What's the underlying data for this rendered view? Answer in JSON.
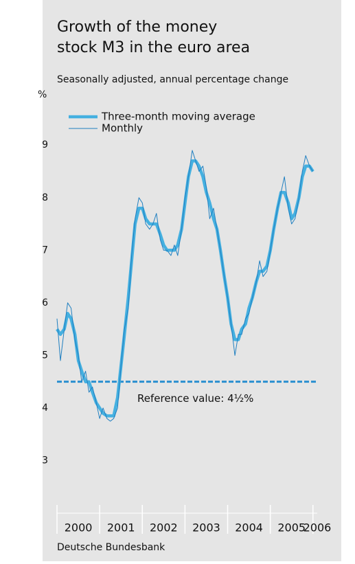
{
  "chart_data": {
    "type": "line",
    "title": [
      "Growth of the money",
      "stock M3 in the euro area"
    ],
    "subtitle": "Seasonally adjusted, annual percentage change",
    "y_label": "%",
    "source": "Deutsche Bundesbank",
    "x": [
      2000,
      2000.08,
      2000.17,
      2000.25,
      2000.33,
      2000.42,
      2000.5,
      2000.58,
      2000.67,
      2000.75,
      2000.83,
      2000.92,
      2001,
      2001.08,
      2001.17,
      2001.25,
      2001.33,
      2001.42,
      2001.5,
      2001.58,
      2001.67,
      2001.75,
      2001.83,
      2001.92,
      2002,
      2002.08,
      2002.17,
      2002.25,
      2002.33,
      2002.42,
      2002.5,
      2002.58,
      2002.67,
      2002.75,
      2002.83,
      2002.92,
      2003,
      2003.08,
      2003.17,
      2003.25,
      2003.33,
      2003.42,
      2003.5,
      2003.58,
      2003.67,
      2003.75,
      2003.83,
      2003.92,
      2004,
      2004.08,
      2004.17,
      2004.25,
      2004.33,
      2004.42,
      2004.5,
      2004.58,
      2004.67,
      2004.75,
      2004.83,
      2004.92,
      2005,
      2005.08,
      2005.17,
      2005.25,
      2005.33,
      2005.42,
      2005.5,
      2005.58,
      2005.67,
      2005.75,
      2005.83,
      2005.92,
      2006
    ],
    "series": [
      {
        "name": "Three-month moving average",
        "color": "#45b0e0",
        "width": 4.5,
        "values": [
          5.5,
          5.4,
          5.5,
          5.8,
          5.7,
          5.4,
          4.9,
          4.7,
          4.5,
          4.5,
          4.3,
          4.1,
          4.0,
          3.9,
          3.85,
          3.85,
          3.85,
          4.2,
          4.8,
          5.4,
          6.1,
          6.8,
          7.5,
          7.8,
          7.8,
          7.6,
          7.5,
          7.5,
          7.5,
          7.3,
          7.1,
          7.0,
          7.0,
          7.0,
          7.1,
          7.4,
          7.9,
          8.4,
          8.7,
          8.7,
          8.6,
          8.4,
          8.1,
          7.9,
          7.6,
          7.4,
          7.0,
          6.5,
          6.1,
          5.6,
          5.3,
          5.3,
          5.5,
          5.6,
          5.9,
          6.1,
          6.4,
          6.6,
          6.6,
          6.7,
          7.0,
          7.4,
          7.8,
          8.1,
          8.1,
          7.9,
          7.6,
          7.7,
          8.0,
          8.4,
          8.6,
          8.6,
          8.5
        ]
      },
      {
        "name": "Monthly",
        "color": "#1f7fc0",
        "width": 1,
        "values": [
          5.7,
          4.9,
          5.5,
          6.0,
          5.9,
          5.3,
          5.0,
          4.5,
          4.7,
          4.3,
          4.4,
          4.1,
          3.8,
          4.0,
          3.8,
          3.75,
          3.8,
          4.0,
          4.8,
          5.5,
          5.9,
          6.9,
          7.6,
          8.0,
          7.9,
          7.5,
          7.4,
          7.5,
          7.7,
          7.2,
          7.0,
          7.0,
          6.9,
          7.1,
          6.9,
          7.4,
          8.0,
          8.4,
          8.9,
          8.7,
          8.5,
          8.6,
          8.2,
          7.6,
          7.8,
          7.4,
          7.0,
          6.5,
          6.1,
          5.6,
          5.0,
          5.4,
          5.4,
          5.7,
          5.8,
          6.1,
          6.4,
          6.8,
          6.5,
          6.6,
          7.0,
          7.4,
          7.8,
          8.1,
          8.4,
          7.8,
          7.5,
          7.6,
          8.0,
          8.5,
          8.8,
          8.6,
          8.5
        ]
      }
    ],
    "reference": {
      "value": 4.5,
      "label": "Reference value: 4½%",
      "color": "#2a8fd0"
    },
    "xlim": [
      2000,
      2006.1
    ],
    "xticks": [
      2000,
      2001,
      2002,
      2003,
      2004,
      2005,
      2006
    ],
    "ylim": [
      2,
      9.8
    ],
    "yticks": [
      3,
      4,
      5,
      6,
      7,
      8,
      9
    ],
    "grid": false,
    "legend": "upper left"
  }
}
